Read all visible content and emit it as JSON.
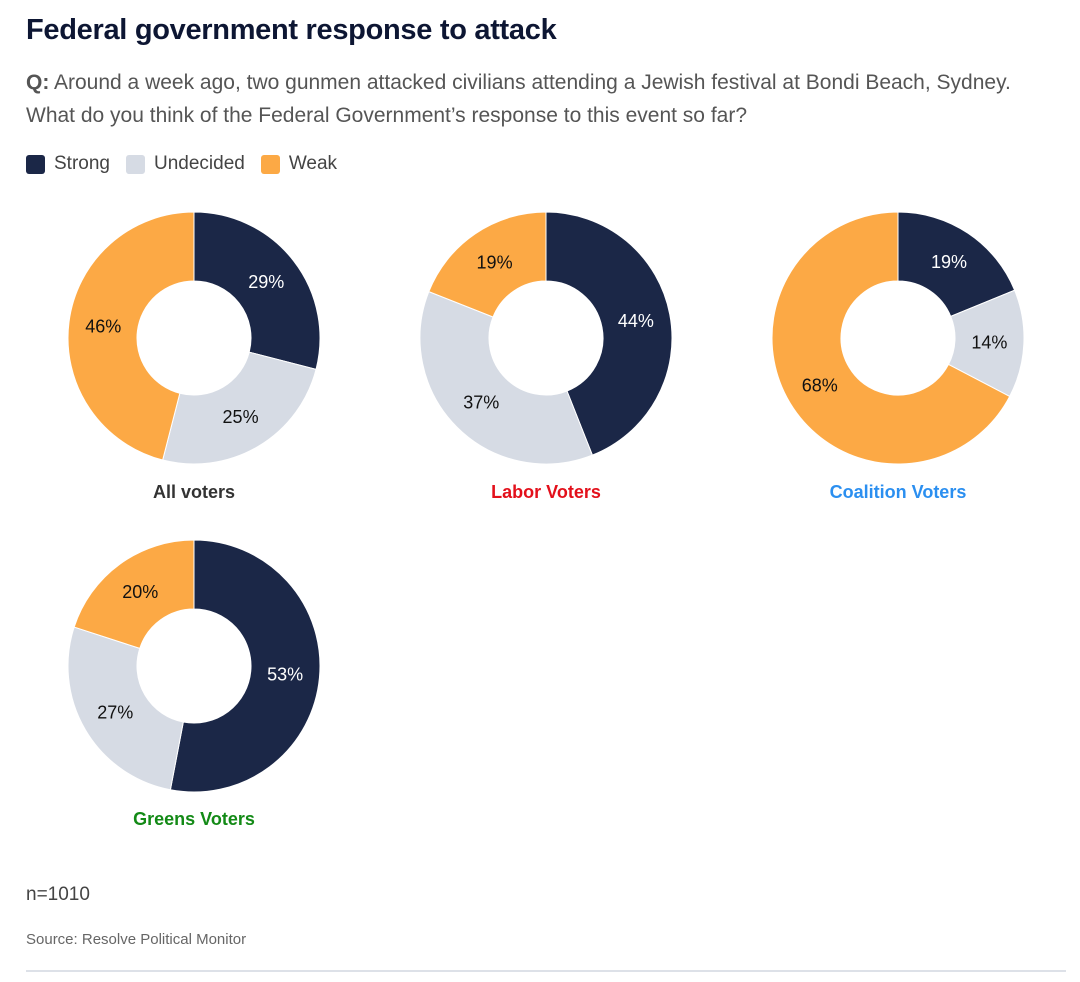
{
  "title": "Federal government response to attack",
  "question": {
    "prefix": "Q:",
    "text": " Around a week ago, two gunmen attacked civilians attending a Jewish festival at Bondi Beach, Sydney. What do you think of the Federal Government’s response to this event so far?"
  },
  "legend": [
    {
      "label": "Strong",
      "color": "#1b2747"
    },
    {
      "label": "Undecided",
      "color": "#d6dbe4"
    },
    {
      "label": "Weak",
      "color": "#fca945"
    }
  ],
  "chart_data": [
    {
      "type": "pie",
      "subtype": "donut",
      "title": "All voters",
      "title_color": "#333333",
      "categories": [
        "Strong",
        "Undecided",
        "Weak"
      ],
      "values": [
        29,
        25,
        46
      ],
      "labels": [
        "29%",
        "25%",
        "46%"
      ]
    },
    {
      "type": "pie",
      "subtype": "donut",
      "title": "Labor Voters",
      "title_color": "#e3101b",
      "categories": [
        "Strong",
        "Undecided",
        "Weak"
      ],
      "values": [
        44,
        37,
        19
      ],
      "labels": [
        "44%",
        "37%",
        "19%"
      ]
    },
    {
      "type": "pie",
      "subtype": "donut",
      "title": "Coalition Voters",
      "title_color": "#2b8ff0",
      "categories": [
        "Strong",
        "Undecided",
        "Weak"
      ],
      "values": [
        19,
        14,
        68
      ],
      "labels": [
        "19%",
        "14%",
        "68%"
      ]
    },
    {
      "type": "pie",
      "subtype": "donut",
      "title": "Greens Voters",
      "title_color": "#138a16",
      "categories": [
        "Strong",
        "Undecided",
        "Weak"
      ],
      "values": [
        53,
        27,
        20
      ],
      "labels": [
        "53%",
        "27%",
        "20%"
      ]
    }
  ],
  "label_colors": {
    "Strong": "#ffffff",
    "Undecided": "#111111",
    "Weak": "#111111"
  },
  "sample_size": "n=1010",
  "source": "Source: Resolve Political Monitor"
}
